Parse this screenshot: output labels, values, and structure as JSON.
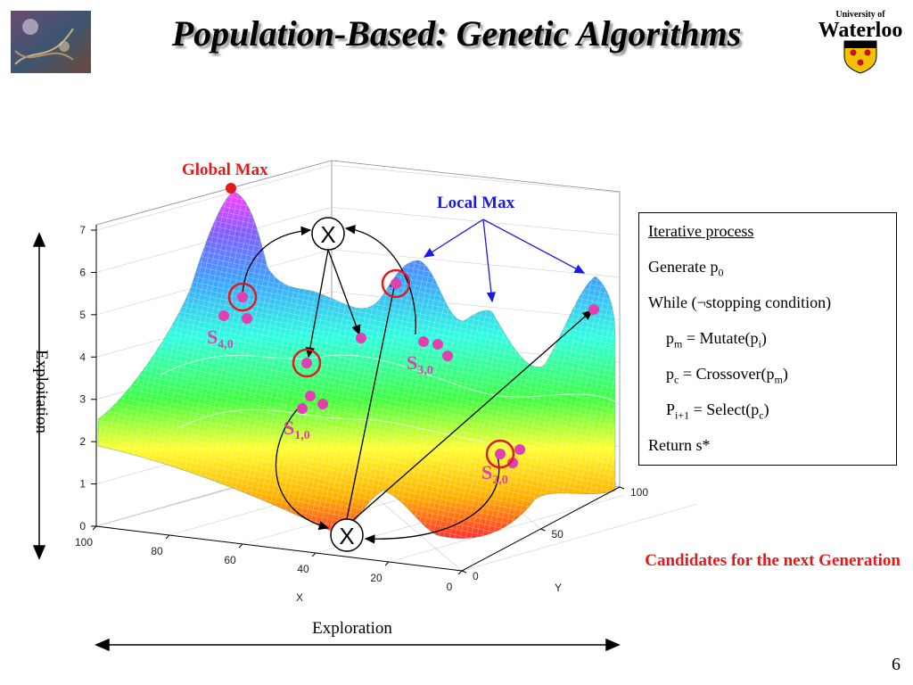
{
  "slide": {
    "title": "Population-Based: Genetic Algorithms",
    "page_number": "6",
    "university_logo_line1": "University of",
    "university_logo_line2": "Waterloo"
  },
  "annotations": {
    "global_max": "Global Max",
    "local_max": "Local Max",
    "crossover_symbol": "X",
    "mutation_symbol": "X",
    "candidates": "Candidates for the next Generation",
    "exploitation": "Exploitation",
    "exploration": "Exploration",
    "population_labels": [
      {
        "main": "S",
        "sub": "4,0"
      },
      {
        "main": "S",
        "sub": "3,0"
      },
      {
        "main": "S",
        "sub": "1,0"
      },
      {
        "main": "S",
        "sub": "2,0"
      }
    ]
  },
  "process_box": {
    "heading": "Iterative process",
    "generate": {
      "text": "Generate p",
      "sub": "0"
    },
    "while": "While (¬stopping condition)",
    "mutate": {
      "a": "p",
      "a_sub": "m",
      "b": " = Mutate(p",
      "b_sub": "i",
      "c": ")"
    },
    "crossover": {
      "a": "p",
      "a_sub": "c",
      "b": " = Crossover(p",
      "b_sub": "m",
      "c": ")"
    },
    "select": {
      "a": "P",
      "a_sub": "i+1",
      "b": " = Select(p",
      "b_sub": "c",
      "c": ")"
    },
    "return": "Return s*"
  },
  "chart_data": {
    "type": "surface",
    "title": "",
    "xlabel": "X",
    "ylabel": "Y",
    "zlabel": "",
    "x_ticks": [
      "100",
      "80",
      "60",
      "40",
      "20",
      "0"
    ],
    "y_ticks": [
      "0",
      "50",
      "100"
    ],
    "z_ticks": [
      "0",
      "1",
      "2",
      "3",
      "4",
      "5",
      "6",
      "7"
    ],
    "xlim": [
      0,
      100
    ],
    "ylim": [
      0,
      100
    ],
    "zlim": [
      0,
      7
    ],
    "grid": true,
    "colormap": "hsv"
  },
  "colors": {
    "red": "#e31a1c",
    "blue": "#1a1ae6",
    "magenta": "#e040b0"
  }
}
